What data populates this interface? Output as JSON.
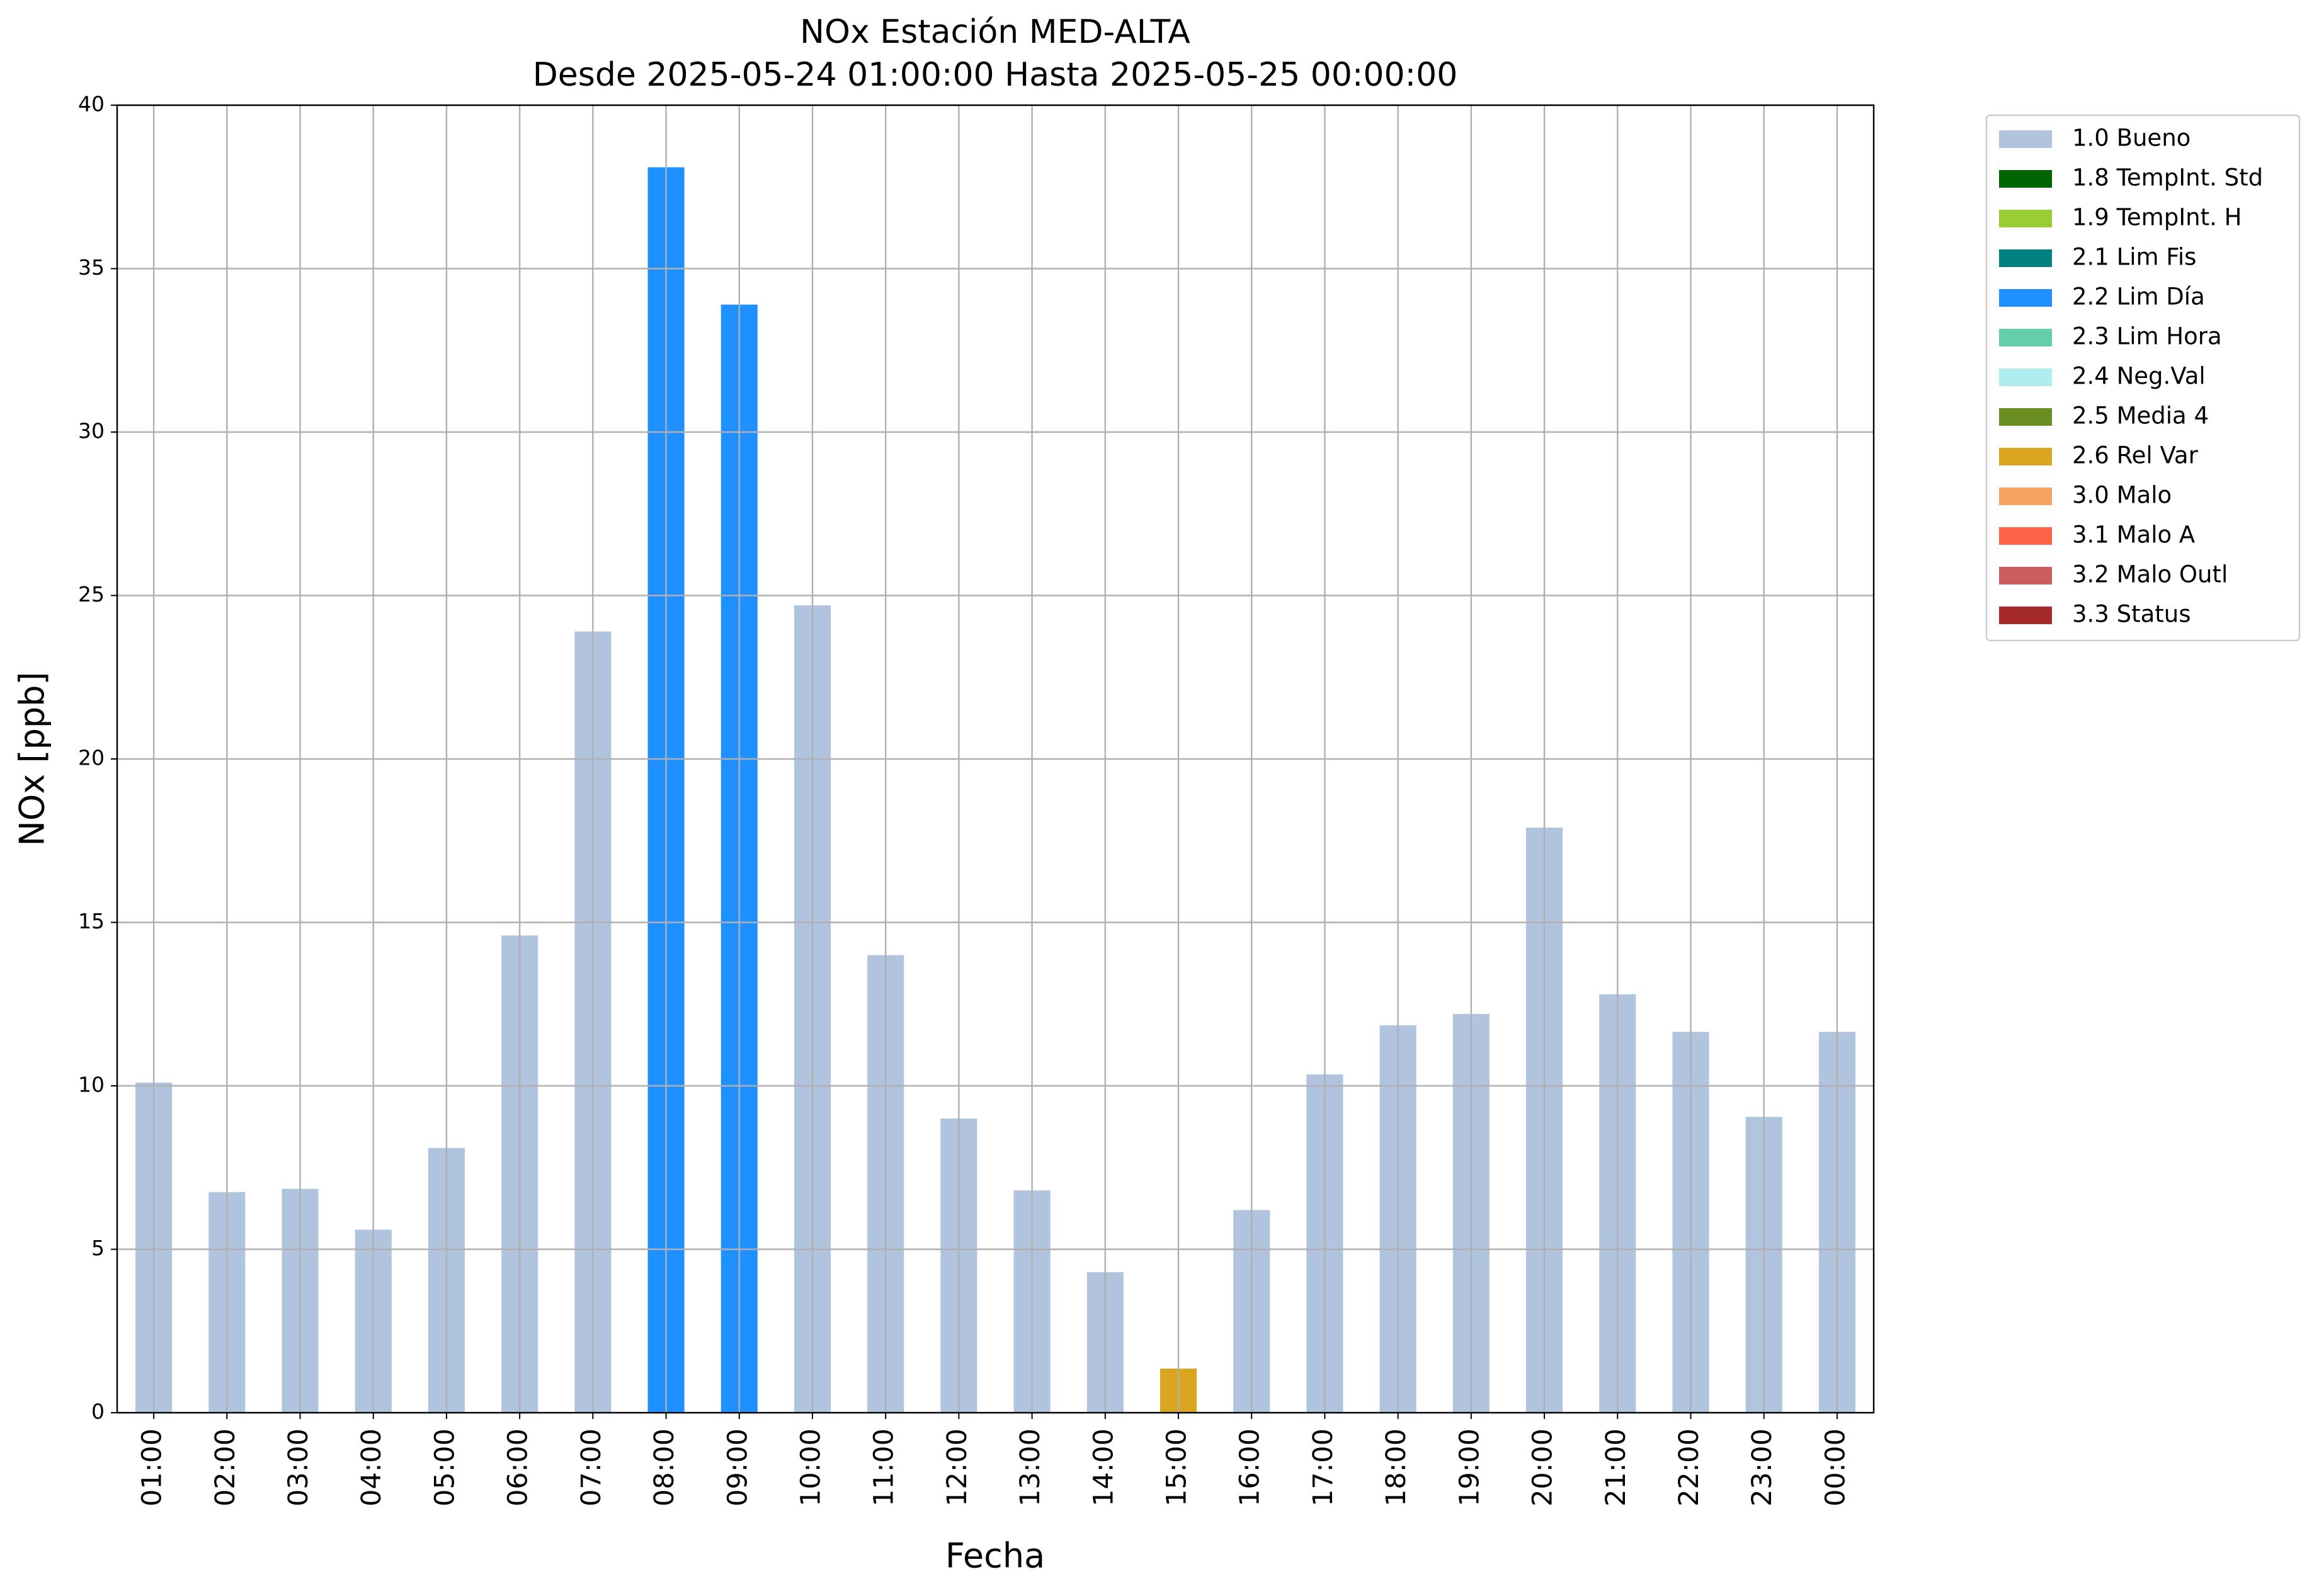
{
  "chart_data": {
    "type": "stacked_bar",
    "title": "NOx Estación MED-ALTA",
    "subtitle": "Desde 2025-05-24 01:00:00 Hasta 2025-05-25 00:00:00",
    "x_label": "Fecha",
    "y_label": "NOx [ppb]",
    "categories": [
      "01:00",
      "02:00",
      "03:00",
      "04:00",
      "05:00",
      "06:00",
      "07:00",
      "08:00",
      "09:00",
      "10:00",
      "11:00",
      "12:00",
      "13:00",
      "14:00",
      "15:00",
      "16:00",
      "17:00",
      "18:00",
      "19:00",
      "20:00",
      "21:00",
      "22:00",
      "23:00",
      "00:00"
    ],
    "series": [
      {
        "name": "1.0 Bueno",
        "color": "#b0c4de",
        "values": [
          10.1,
          6.75,
          6.85,
          5.6,
          8.1,
          14.6,
          23.9,
          null,
          null,
          24.7,
          14.0,
          9.0,
          6.8,
          4.3,
          null,
          6.2,
          10.35,
          11.85,
          12.2,
          17.9,
          12.8,
          11.65,
          9.05,
          11.65
        ]
      },
      {
        "name": "1.8 TempInt. Std",
        "color": "#006400",
        "values": [
          null,
          null,
          null,
          null,
          null,
          null,
          null,
          null,
          null,
          null,
          null,
          null,
          null,
          null,
          null,
          null,
          null,
          null,
          null,
          null,
          null,
          null,
          null,
          null
        ]
      },
      {
        "name": "1.9 TempInt. H",
        "color": "#9acd32",
        "values": [
          null,
          null,
          null,
          null,
          null,
          null,
          null,
          null,
          null,
          null,
          null,
          null,
          null,
          null,
          null,
          null,
          null,
          null,
          null,
          null,
          null,
          null,
          null,
          null
        ]
      },
      {
        "name": "2.1 Lim Fis",
        "color": "#008080",
        "values": [
          null,
          null,
          null,
          null,
          null,
          null,
          null,
          null,
          null,
          null,
          null,
          null,
          null,
          null,
          null,
          null,
          null,
          null,
          null,
          null,
          null,
          null,
          null,
          null
        ]
      },
      {
        "name": "2.2 Lim Día",
        "color": "#1e90ff",
        "values": [
          null,
          null,
          null,
          null,
          null,
          null,
          null,
          38.1,
          33.9,
          null,
          null,
          null,
          null,
          null,
          null,
          null,
          null,
          null,
          null,
          null,
          null,
          null,
          null,
          null
        ]
      },
      {
        "name": "2.3 Lim Hora",
        "color": "#66cdaa",
        "values": [
          null,
          null,
          null,
          null,
          null,
          null,
          null,
          null,
          null,
          null,
          null,
          null,
          null,
          null,
          null,
          null,
          null,
          null,
          null,
          null,
          null,
          null,
          null,
          null
        ]
      },
      {
        "name": "2.4 Neg.Val",
        "color": "#afeeee",
        "values": [
          null,
          null,
          null,
          null,
          null,
          null,
          null,
          null,
          null,
          null,
          null,
          null,
          null,
          null,
          null,
          null,
          null,
          null,
          null,
          null,
          null,
          null,
          null,
          null
        ]
      },
      {
        "name": "2.5 Media 4",
        "color": "#6b8e23",
        "values": [
          null,
          null,
          null,
          null,
          null,
          null,
          null,
          null,
          null,
          null,
          null,
          null,
          null,
          null,
          null,
          null,
          null,
          null,
          null,
          null,
          null,
          null,
          null,
          null
        ]
      },
      {
        "name": "2.6 Rel Var",
        "color": "#daa520",
        "values": [
          null,
          null,
          null,
          null,
          null,
          null,
          null,
          null,
          null,
          null,
          null,
          null,
          null,
          null,
          1.35,
          null,
          null,
          null,
          null,
          null,
          null,
          null,
          null,
          null
        ]
      },
      {
        "name": "3.0 Malo",
        "color": "#f4a460",
        "values": [
          null,
          null,
          null,
          null,
          null,
          null,
          null,
          null,
          null,
          null,
          null,
          null,
          null,
          null,
          null,
          null,
          null,
          null,
          null,
          null,
          null,
          null,
          null,
          null
        ]
      },
      {
        "name": "3.1 Malo A",
        "color": "#ff6347",
        "values": [
          null,
          null,
          null,
          null,
          null,
          null,
          null,
          null,
          null,
          null,
          null,
          null,
          null,
          null,
          null,
          null,
          null,
          null,
          null,
          null,
          null,
          null,
          null,
          null
        ]
      },
      {
        "name": "3.2 Malo Outl",
        "color": "#cd5c5c",
        "values": [
          null,
          null,
          null,
          null,
          null,
          null,
          null,
          null,
          null,
          null,
          null,
          null,
          null,
          null,
          null,
          null,
          null,
          null,
          null,
          null,
          null,
          null,
          null,
          null
        ]
      },
      {
        "name": "3.3 Status",
        "color": "#a52a2a",
        "values": [
          null,
          null,
          null,
          null,
          null,
          null,
          null,
          null,
          null,
          null,
          null,
          null,
          null,
          null,
          null,
          null,
          null,
          null,
          null,
          null,
          null,
          null,
          null,
          null
        ]
      }
    ],
    "ylim": [
      0,
      40
    ],
    "yticks": [
      0,
      5,
      10,
      15,
      20,
      25,
      30,
      35,
      40
    ],
    "grid": true,
    "legend": "outside upper right"
  }
}
